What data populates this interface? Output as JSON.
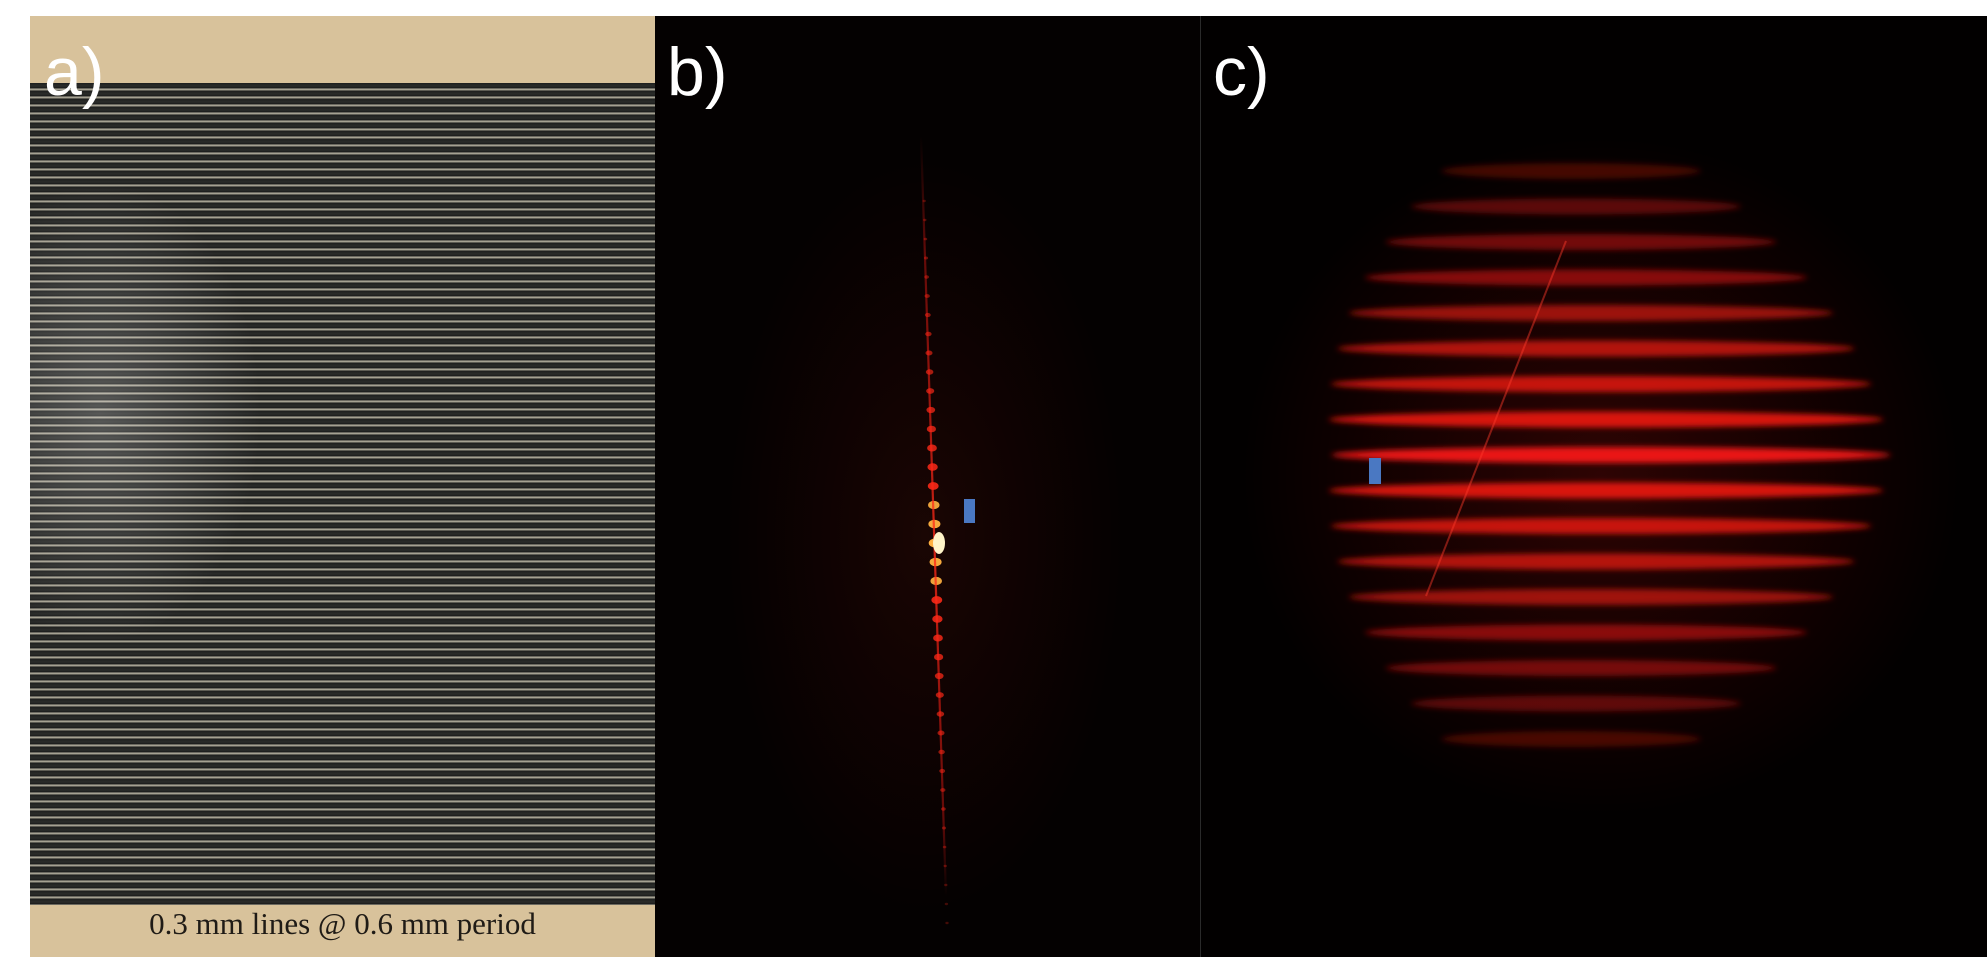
{
  "panels": {
    "a": {
      "label": "a)",
      "caption": "0.3 mm lines @ 0.6 mm period"
    },
    "b": {
      "label": "b)"
    },
    "c": {
      "label": "c)"
    }
  },
  "colors": {
    "laser_red": "#ff1a14",
    "marker_blue": "#4a78c2",
    "wood": "#d8c29b",
    "background_black": "#040101"
  }
}
